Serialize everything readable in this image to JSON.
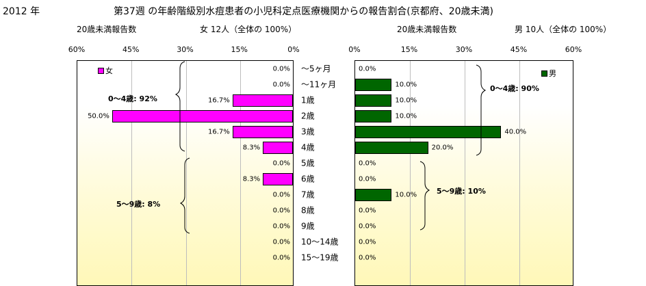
{
  "header": {
    "year": "2012 年",
    "title": "第37週 の年齢階級別水痘患者の小児科定点医療機関からの報告割合(京都府、20歳未満)"
  },
  "left_panel": {
    "report_label": "20歳未満報告数",
    "summary": "女 12人（全体の 100%）",
    "legend": "女",
    "group_1": "0～4歳: 92%",
    "group_2": "5～9歳: 8%"
  },
  "right_panel": {
    "report_label": "20歳未満報告数",
    "summary": "男 10人（全体の 100%）",
    "legend": "男",
    "group_1": "0～4歳: 90%",
    "group_2": "5～9歳: 10%"
  },
  "colors": {
    "female": "#ff00ff",
    "male": "#006600"
  },
  "chart_data": [
    {
      "type": "bar",
      "orientation": "horizontal",
      "direction": "right-to-left",
      "series": [
        {
          "name": "女",
          "values": [
            0,
            0,
            16.7,
            50.0,
            16.7,
            8.3,
            0,
            8.3,
            0,
            0,
            0,
            0,
            0
          ]
        }
      ],
      "value_labels": [
        "0.0%",
        "0.0%",
        "16.7%",
        "50.0%",
        "16.7%",
        "8.3%",
        "0.0%",
        "8.3%",
        "0.0%",
        "0.0%",
        "0.0%",
        "0.0%",
        "0.0%"
      ],
      "xlim": [
        0,
        60
      ],
      "xticks": [
        "60%",
        "45%",
        "30%",
        "15%",
        "0%"
      ],
      "grid": true,
      "legend_position": "top-left"
    },
    {
      "type": "bar",
      "orientation": "horizontal",
      "direction": "left-to-right",
      "series": [
        {
          "name": "男",
          "values": [
            0,
            10.0,
            10.0,
            10.0,
            40.0,
            20.0,
            0,
            0,
            10.0,
            0,
            0,
            0,
            0
          ]
        }
      ],
      "value_labels": [
        "0.0%",
        "10.0%",
        "10.0%",
        "10.0%",
        "40.0%",
        "20.0%",
        "0.0%",
        "0.0%",
        "10.0%",
        "0.0%",
        "0.0%",
        "0.0%",
        "0.0%"
      ],
      "xlim": [
        0,
        60
      ],
      "xticks": [
        "0%",
        "15%",
        "30%",
        "45%",
        "60%"
      ],
      "grid": true,
      "legend_position": "top-right"
    }
  ],
  "categories": [
    "～5ヶ月",
    "～11ヶ月",
    "1歳",
    "2歳",
    "3歳",
    "4歳",
    "5歳",
    "6歳",
    "7歳",
    "8歳",
    "9歳",
    "10～14歳",
    "15～19歳"
  ]
}
